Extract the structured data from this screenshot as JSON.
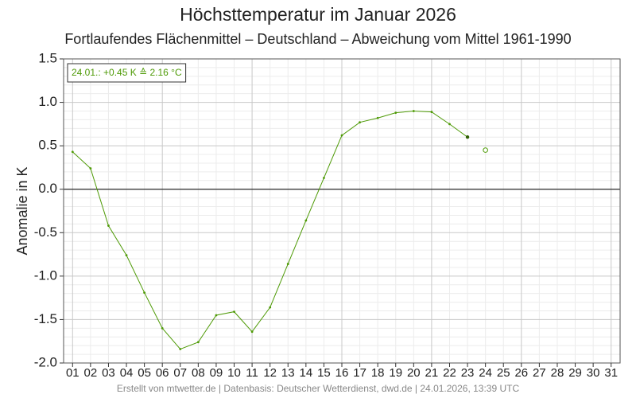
{
  "chart_data": {
    "type": "line",
    "title": "Höchsttemperatur im Januar 2026",
    "subtitle": "Fortlaufendes Flächenmittel – Deutschland – Abweichung vom Mittel 1961-1990",
    "y_label": "Anomalie in K",
    "annotation": "24.01.: +0.45 K ≙ 2.16 °C",
    "footer": "Erstellt von mtwetter.de | Datenbasis: Deutscher Wetterdienst, dwd.de | 24.01.2026, 13:39 UTC",
    "categories": [
      "01",
      "02",
      "03",
      "04",
      "05",
      "06",
      "07",
      "08",
      "09",
      "10",
      "11",
      "12",
      "13",
      "14",
      "15",
      "16",
      "17",
      "18",
      "19",
      "20",
      "21",
      "22",
      "23",
      "24",
      "25",
      "26",
      "27",
      "28",
      "29",
      "30",
      "31"
    ],
    "values": [
      0.43,
      0.24,
      -0.42,
      -0.76,
      -1.19,
      -1.6,
      -1.84,
      -1.76,
      -1.45,
      -1.41,
      -1.64,
      -1.36,
      -0.86,
      -0.36,
      0.13,
      0.62,
      0.77,
      0.82,
      0.88,
      0.9,
      0.89,
      0.75,
      0.6,
      null,
      null,
      null,
      null,
      null,
      null,
      null,
      null
    ],
    "marker_values": [
      null,
      null,
      null,
      null,
      null,
      null,
      null,
      null,
      null,
      null,
      null,
      null,
      null,
      null,
      null,
      null,
      null,
      null,
      null,
      null,
      null,
      null,
      null,
      0.45,
      null,
      null,
      null,
      null,
      null,
      null,
      null
    ],
    "color": "#4e9a06",
    "ylim": [
      -2.0,
      1.5
    ],
    "yticks": [
      {
        "value": -2,
        "label": "-2.0"
      },
      -1.5,
      {
        "value": -1,
        "label": "-1.0"
      },
      -0.5,
      {
        "value": 0,
        "label": "0.0"
      },
      0.5,
      {
        "value": 1,
        "label": "1.0"
      },
      1.5
    ],
    "grid": true
  }
}
